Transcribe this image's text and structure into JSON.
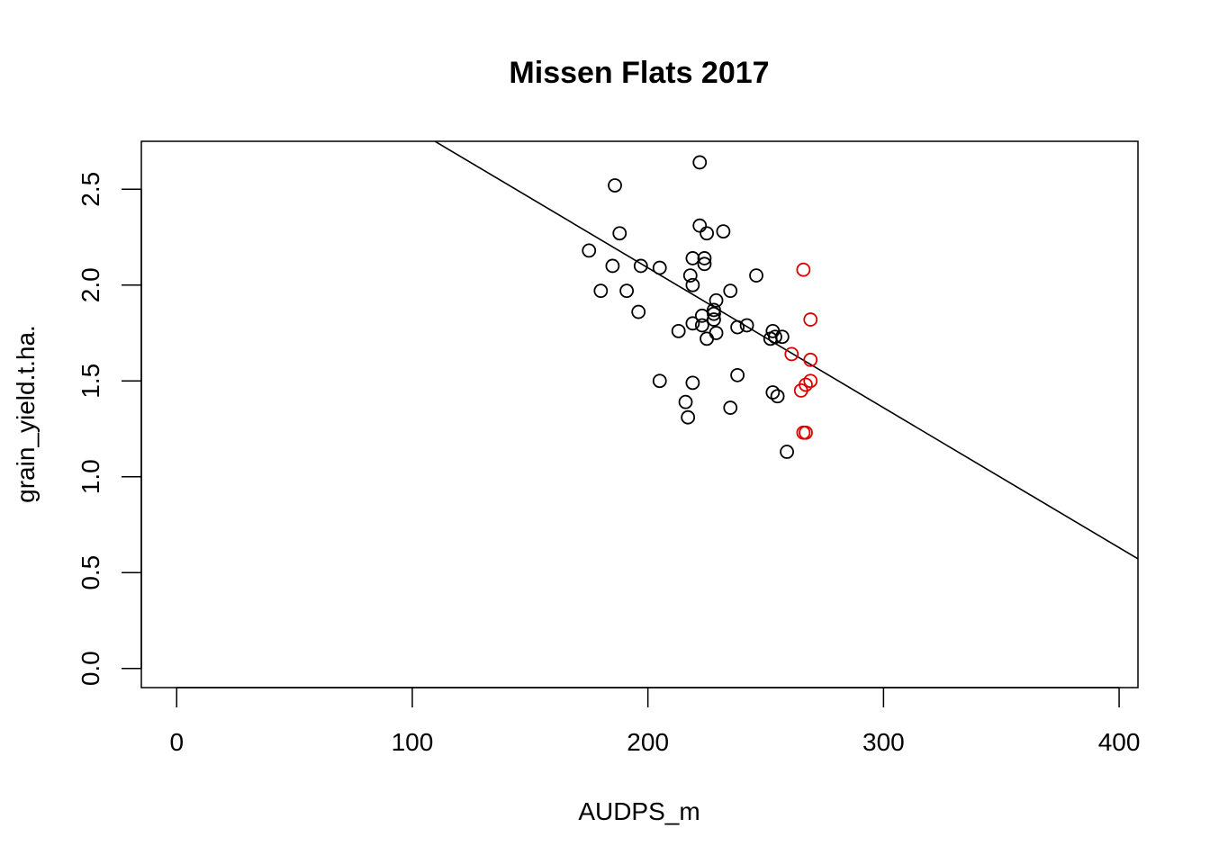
{
  "chart_data": {
    "type": "scatter",
    "title": "Missen Flats 2017",
    "xlabel": "AUDPS_m",
    "ylabel": "grain_yield.t.ha.",
    "xlim": [
      -15,
      408
    ],
    "ylim": [
      -0.1,
      2.75
    ],
    "xticks": [
      0,
      100,
      200,
      300,
      400
    ],
    "yticks": [
      0.0,
      0.5,
      1.0,
      1.5,
      2.0,
      2.5
    ],
    "xtick_labels": [
      "0",
      "100",
      "200",
      "300",
      "400"
    ],
    "ytick_labels": [
      "0.0",
      "0.5",
      "1.0",
      "1.5",
      "2.0",
      "2.5"
    ],
    "grid": false,
    "legend": "none",
    "series": [
      {
        "color": "#000000",
        "marker": "open-circle",
        "points": [
          [
            222,
            2.64
          ],
          [
            186,
            2.52
          ],
          [
            222,
            2.31
          ],
          [
            188,
            2.27
          ],
          [
            225,
            2.27
          ],
          [
            232,
            2.28
          ],
          [
            175,
            2.18
          ],
          [
            185,
            2.1
          ],
          [
            197,
            2.1
          ],
          [
            205,
            2.09
          ],
          [
            219,
            2.14
          ],
          [
            224,
            2.14
          ],
          [
            224,
            2.11
          ],
          [
            218,
            2.05
          ],
          [
            246,
            2.05
          ],
          [
            180,
            1.97
          ],
          [
            191,
            1.97
          ],
          [
            219,
            2.0
          ],
          [
            235,
            1.97
          ],
          [
            229,
            1.92
          ],
          [
            196,
            1.86
          ],
          [
            228,
            1.87
          ],
          [
            228,
            1.85
          ],
          [
            223,
            1.84
          ],
          [
            228,
            1.82
          ],
          [
            219,
            1.8
          ],
          [
            223,
            1.79
          ],
          [
            238,
            1.78
          ],
          [
            242,
            1.79
          ],
          [
            213,
            1.76
          ],
          [
            229,
            1.75
          ],
          [
            225,
            1.72
          ],
          [
            253,
            1.76
          ],
          [
            254,
            1.73
          ],
          [
            252,
            1.72
          ],
          [
            257,
            1.73
          ],
          [
            238,
            1.53
          ],
          [
            205,
            1.5
          ],
          [
            219,
            1.49
          ],
          [
            253,
            1.44
          ],
          [
            255,
            1.42
          ],
          [
            216,
            1.39
          ],
          [
            235,
            1.36
          ],
          [
            217,
            1.31
          ],
          [
            259,
            1.13
          ]
        ]
      },
      {
        "color": "#dd0000",
        "marker": "open-circle",
        "points": [
          [
            266,
            2.08
          ],
          [
            269,
            1.82
          ],
          [
            261,
            1.64
          ],
          [
            269,
            1.61
          ],
          [
            269,
            1.5
          ],
          [
            267,
            1.48
          ],
          [
            265,
            1.45
          ],
          [
            267,
            1.23
          ],
          [
            266,
            1.23
          ]
        ]
      }
    ],
    "regression_line": {
      "intercept": 3.55,
      "slope": -0.0073,
      "color": "#000000"
    }
  }
}
